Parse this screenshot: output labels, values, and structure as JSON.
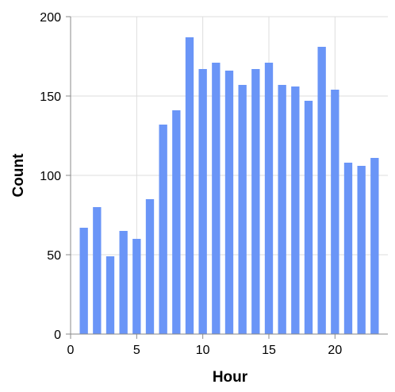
{
  "chart_data": {
    "type": "bar",
    "title": "",
    "xlabel": "Hour",
    "ylabel": "Count",
    "x": [
      1,
      2,
      3,
      4,
      5,
      6,
      7,
      8,
      9,
      10,
      11,
      12,
      13,
      14,
      15,
      16,
      17,
      18,
      19,
      20,
      21,
      22,
      23
    ],
    "values": [
      67,
      80,
      49,
      65,
      60,
      85,
      132,
      141,
      187,
      167,
      171,
      166,
      157,
      167,
      171,
      157,
      156,
      147,
      181,
      154,
      108,
      106,
      111
    ],
    "xlim": [
      0,
      24
    ],
    "ylim": [
      0,
      200
    ],
    "x_ticks": [
      "0",
      "5",
      "10",
      "15",
      "20"
    ],
    "y_ticks": [
      "0",
      "50",
      "100",
      "150",
      "200"
    ],
    "grid": true,
    "bar_color": "#6a95f7",
    "grid_color": "#dddddd",
    "axis_color": "#888888"
  }
}
